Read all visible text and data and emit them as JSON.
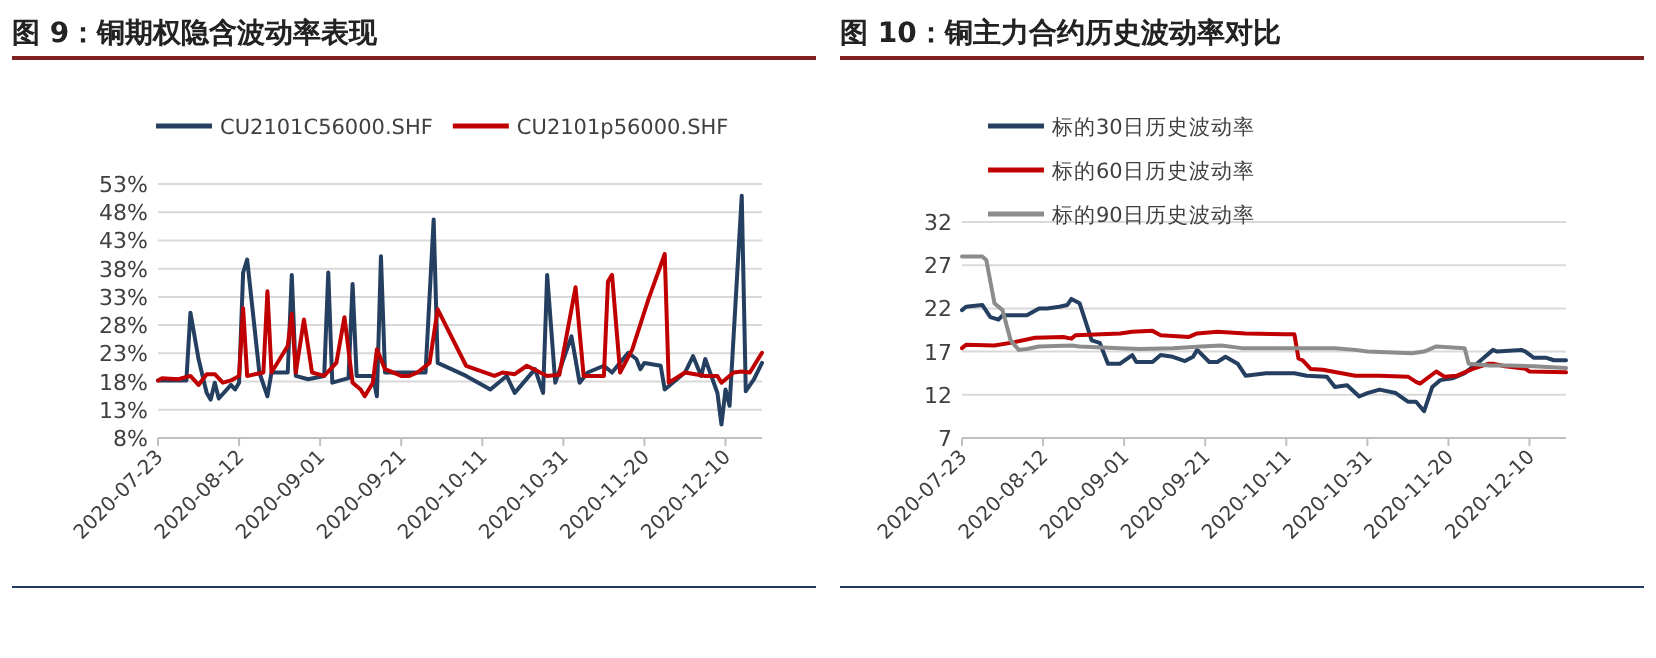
{
  "chart_data": [
    {
      "type": "line",
      "title": "图 9：铜期权隐含波动率表现",
      "legend": "top",
      "grid": "y",
      "xlim": [
        "2020-07-23",
        "2020-12-19"
      ],
      "xticks": [
        "2020-07-23",
        "2020-08-12",
        "2020-09-01",
        "2020-09-21",
        "2020-10-11",
        "2020-10-31",
        "2020-11-20",
        "2020-12-10"
      ],
      "ylim": [
        8,
        53
      ],
      "yticks": [
        {
          "value": 8,
          "label": "8%"
        },
        {
          "value": 13,
          "label": "13%"
        },
        {
          "value": 18,
          "label": "18%"
        },
        {
          "value": 23,
          "label": "23%"
        },
        {
          "value": 28,
          "label": "28%"
        },
        {
          "value": 33,
          "label": "33%"
        },
        {
          "value": 38,
          "label": "38%"
        },
        {
          "value": 43,
          "label": "43%"
        },
        {
          "value": 48,
          "label": "48%"
        },
        {
          "value": 53,
          "label": "53%"
        }
      ],
      "series": [
        {
          "name": "CU2101C56000.SHF",
          "color": "#243f60",
          "x": [
            "2020-07-23",
            "2020-07-28",
            "2020-07-30",
            "2020-07-31",
            "2020-08-02",
            "2020-08-04",
            "2020-08-05",
            "2020-08-06",
            "2020-08-07",
            "2020-08-10",
            "2020-08-11",
            "2020-08-12",
            "2020-08-13",
            "2020-08-14",
            "2020-08-17",
            "2020-08-19",
            "2020-08-20",
            "2020-08-24",
            "2020-08-25",
            "2020-08-26",
            "2020-08-29",
            "2020-09-02",
            "2020-09-03",
            "2020-09-04",
            "2020-09-08",
            "2020-09-09",
            "2020-09-10",
            "2020-09-14",
            "2020-09-15",
            "2020-09-16",
            "2020-09-17",
            "2020-09-24",
            "2020-09-27",
            "2020-09-29",
            "2020-09-30",
            "2020-10-07",
            "2020-10-13",
            "2020-10-17",
            "2020-10-19",
            "2020-10-24",
            "2020-10-26",
            "2020-10-27",
            "2020-10-29",
            "2020-11-02",
            "2020-11-04",
            "2020-11-06",
            "2020-11-10",
            "2020-11-12",
            "2020-11-16",
            "2020-11-18",
            "2020-11-19",
            "2020-11-20",
            "2020-11-24",
            "2020-11-25",
            "2020-11-30",
            "2020-12-02",
            "2020-12-04",
            "2020-12-05",
            "2020-12-08",
            "2020-12-09",
            "2020-12-10",
            "2020-12-11",
            "2020-12-14",
            "2020-12-15",
            "2020-12-17",
            "2020-12-19"
          ],
          "values": [
            18.2,
            18.2,
            18.2,
            30.2,
            22,
            16,
            14.8,
            17.8,
            15,
            17.4,
            16.6,
            17.8,
            37.3,
            39.6,
            19.6,
            15.4,
            19.6,
            19.6,
            36.9,
            19,
            18.4,
            19,
            37.3,
            17.8,
            18.6,
            35.3,
            19,
            19,
            15.4,
            40.2,
            19.6,
            19.6,
            19.6,
            46.7,
            21.3,
            19,
            16.6,
            19,
            16,
            20.2,
            16,
            36.9,
            17.8,
            26,
            17.8,
            19.6,
            20.8,
            19.6,
            23.1,
            22,
            20.2,
            21.3,
            20.8,
            16.6,
            19.6,
            22.5,
            19,
            22,
            16,
            10.4,
            16.6,
            13.7,
            50.9,
            16.3,
            18.4,
            21.3
          ]
        },
        {
          "name": "CU2101p56000.SHF",
          "color": "#c00000",
          "x": [
            "2020-07-23",
            "2020-07-24",
            "2020-07-28",
            "2020-07-31",
            "2020-08-02",
            "2020-08-04",
            "2020-08-06",
            "2020-08-08",
            "2020-08-10",
            "2020-08-12",
            "2020-08-13",
            "2020-08-14",
            "2020-08-18",
            "2020-08-19",
            "2020-08-20",
            "2020-08-24",
            "2020-08-25",
            "2020-08-26",
            "2020-08-28",
            "2020-08-30",
            "2020-09-02",
            "2020-09-05",
            "2020-09-07",
            "2020-09-09",
            "2020-09-11",
            "2020-09-12",
            "2020-09-14",
            "2020-09-15",
            "2020-09-17",
            "2020-09-21",
            "2020-09-23",
            "2020-09-25",
            "2020-09-28",
            "2020-09-30",
            "2020-10-07",
            "2020-10-14",
            "2020-10-16",
            "2020-10-19",
            "2020-10-22",
            "2020-10-27",
            "2020-10-30",
            "2020-11-03",
            "2020-11-05",
            "2020-11-10",
            "2020-11-11",
            "2020-11-12",
            "2020-11-14",
            "2020-11-17",
            "2020-11-21",
            "2020-11-25",
            "2020-11-26",
            "2020-11-30",
            "2020-12-05",
            "2020-12-08",
            "2020-12-09",
            "2020-12-12",
            "2020-12-14",
            "2020-12-16",
            "2020-12-19"
          ],
          "values": [
            18.2,
            18.6,
            18.4,
            19,
            17.4,
            19.3,
            19.3,
            17.8,
            18.2,
            19,
            31,
            19,
            19.6,
            34,
            19.6,
            24.3,
            30,
            19.6,
            29,
            19.6,
            19,
            21.3,
            29.4,
            17.8,
            16.6,
            15.4,
            17.8,
            23.7,
            20.2,
            19,
            19,
            19.6,
            21.3,
            30.8,
            20.8,
            19,
            19.6,
            19.3,
            20.8,
            19,
            19.2,
            34.7,
            19,
            19,
            35.7,
            36.9,
            19.6,
            23.7,
            32.6,
            40.6,
            17.8,
            19.6,
            19,
            19,
            17.8,
            19.6,
            19.8,
            19.6,
            23.1
          ]
        }
      ]
    },
    {
      "type": "line",
      "title": "图 10：铜主力合约历史波动率对比",
      "legend": "top",
      "grid": "y",
      "xlim": [
        "2020-07-23",
        "2020-12-19"
      ],
      "xticks": [
        "2020-07-23",
        "2020-08-12",
        "2020-09-01",
        "2020-09-21",
        "2020-10-11",
        "2020-10-31",
        "2020-11-20",
        "2020-12-10"
      ],
      "ylim": [
        7,
        32
      ],
      "yticks": [
        7,
        12,
        17,
        22,
        27,
        32
      ],
      "series": [
        {
          "name": "标的30日历史波动率",
          "color": "#243f60",
          "x": [
            "2020-07-23",
            "2020-07-24",
            "2020-07-28",
            "2020-07-30",
            "2020-08-01",
            "2020-08-02",
            "2020-08-08",
            "2020-08-11",
            "2020-08-13",
            "2020-08-16",
            "2020-08-18",
            "2020-08-19",
            "2020-08-21",
            "2020-08-24",
            "2020-08-26",
            "2020-08-28",
            "2020-08-31",
            "2020-09-03",
            "2020-09-04",
            "2020-09-08",
            "2020-09-10",
            "2020-09-13",
            "2020-09-16",
            "2020-09-18",
            "2020-09-19",
            "2020-09-22",
            "2020-09-24",
            "2020-09-26",
            "2020-09-29",
            "2020-10-01",
            "2020-10-06",
            "2020-10-13",
            "2020-10-16",
            "2020-10-21",
            "2020-10-23",
            "2020-10-26",
            "2020-10-29",
            "2020-10-31",
            "2020-11-03",
            "2020-11-07",
            "2020-11-10",
            "2020-11-12",
            "2020-11-14",
            "2020-11-16",
            "2020-11-18",
            "2020-11-21",
            "2020-11-24",
            "2020-11-27",
            "2020-12-01",
            "2020-12-02",
            "2020-12-08",
            "2020-12-09",
            "2020-12-11",
            "2020-12-14",
            "2020-12-16",
            "2020-12-19"
          ],
          "values": [
            21.8,
            22.2,
            22.4,
            21,
            20.7,
            21.2,
            21.2,
            22,
            22,
            22.2,
            22.4,
            23.1,
            22.6,
            18.3,
            18,
            15.6,
            15.6,
            16.6,
            15.8,
            15.8,
            16.6,
            16.4,
            15.9,
            16.4,
            17.2,
            15.8,
            15.8,
            16.4,
            15.6,
            14.2,
            14.5,
            14.5,
            14.2,
            14.1,
            12.9,
            13.1,
            11.8,
            12.2,
            12.6,
            12.2,
            11.2,
            11.2,
            10.1,
            12.9,
            13.7,
            13.9,
            14.5,
            15.6,
            17.2,
            17,
            17.2,
            17,
            16.3,
            16.3,
            16,
            16
          ]
        },
        {
          "name": "标的60日历史波动率",
          "color": "#c00000",
          "x": [
            "2020-07-23",
            "2020-07-24",
            "2020-07-31",
            "2020-08-05",
            "2020-08-10",
            "2020-08-17",
            "2020-08-19",
            "2020-08-20",
            "2020-08-31",
            "2020-09-03",
            "2020-09-08",
            "2020-09-10",
            "2020-09-17",
            "2020-09-19",
            "2020-09-24",
            "2020-10-01",
            "2020-10-11",
            "2020-10-13",
            "2020-10-14",
            "2020-10-15",
            "2020-10-17",
            "2020-10-20",
            "2020-10-28",
            "2020-11-03",
            "2020-11-10",
            "2020-11-12",
            "2020-11-13",
            "2020-11-17",
            "2020-11-19",
            "2020-11-22",
            "2020-11-26",
            "2020-11-30",
            "2020-12-01",
            "2020-12-04",
            "2020-12-09",
            "2020-12-10",
            "2020-12-19"
          ],
          "values": [
            17.4,
            17.8,
            17.7,
            18.1,
            18.6,
            18.7,
            18.5,
            18.9,
            19.1,
            19.3,
            19.4,
            18.9,
            18.7,
            19.1,
            19.3,
            19.1,
            19,
            19,
            16.2,
            16,
            15,
            14.9,
            14.2,
            14.2,
            14.1,
            13.5,
            13.3,
            14.7,
            14.1,
            14.2,
            15,
            15.6,
            15.6,
            15.3,
            15,
            14.7,
            14.6
          ]
        },
        {
          "name": "标的90日历史波动率",
          "color": "#8c8c8c",
          "x": [
            "2020-07-23",
            "2020-07-28",
            "2020-07-29",
            "2020-07-31",
            "2020-08-02",
            "2020-08-04",
            "2020-08-06",
            "2020-08-08",
            "2020-08-11",
            "2020-08-19",
            "2020-08-21",
            "2020-08-31",
            "2020-09-05",
            "2020-09-13",
            "2020-09-20",
            "2020-09-25",
            "2020-09-30",
            "2020-10-19",
            "2020-10-23",
            "2020-10-28",
            "2020-10-31",
            "2020-11-11",
            "2020-11-14",
            "2020-11-17",
            "2020-11-24",
            "2020-11-25",
            "2020-11-30",
            "2020-12-05",
            "2020-12-11",
            "2020-12-19"
          ],
          "values": [
            28,
            28,
            27.6,
            22.6,
            21.8,
            18.3,
            17.2,
            17.3,
            17.6,
            17.7,
            17.6,
            17.4,
            17.3,
            17.4,
            17.6,
            17.7,
            17.4,
            17.4,
            17.4,
            17.2,
            17,
            16.8,
            17,
            17.6,
            17.4,
            15.6,
            15.4,
            15.4,
            15.3,
            15.1
          ]
        }
      ]
    }
  ]
}
